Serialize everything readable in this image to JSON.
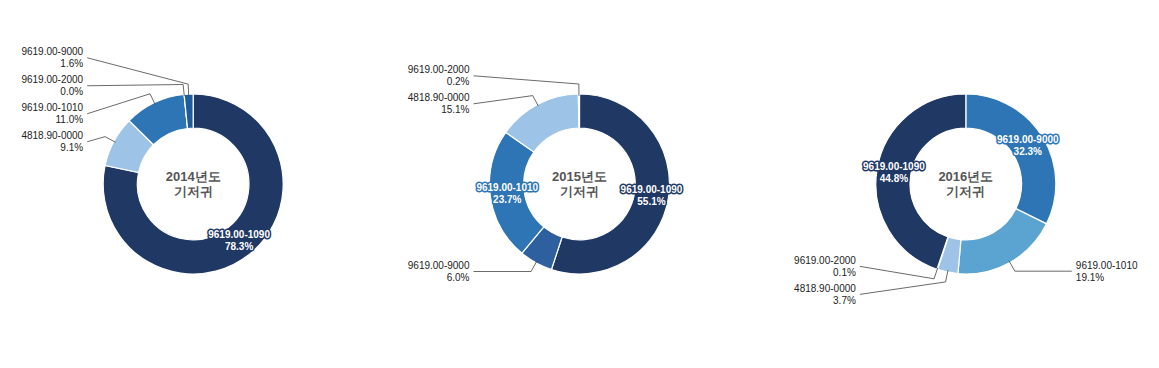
{
  "chart_data": [
    {
      "type": "donut",
      "title": "2014년도\n기저귀",
      "categories": [
        "9619.00-1090",
        "4818.90-0000",
        "9619.00-1010",
        "9619.00-2000",
        "9619.00-9000"
      ],
      "values": [
        78.3,
        9.1,
        11.0,
        0.0,
        1.6
      ],
      "value_labels": [
        "78.3%",
        "9.1%",
        "11.0%",
        "0.0%",
        "1.6%"
      ],
      "colors": [
        "#1f3864",
        "#9dc3e6",
        "#2e75b6",
        "#1f3864",
        "#1f5c99"
      ],
      "data_labels": true
    },
    {
      "type": "donut",
      "title": "2015년도\n기저귀",
      "categories": [
        "9619.00-1090",
        "9619.00-9000",
        "9619.00-1010",
        "4818.90-0000",
        "9619.00-2000"
      ],
      "values": [
        55.1,
        6.0,
        23.7,
        15.1,
        0.2
      ],
      "value_labels": [
        "55.1%",
        "6.0%",
        "23.7%",
        "15.1%",
        "0.2%"
      ],
      "colors": [
        "#1f3864",
        "#2e5f9e",
        "#2e75b6",
        "#9dc3e6",
        "#1a3a5c"
      ],
      "data_labels": true
    },
    {
      "type": "donut",
      "title": "2016년도\n기저귀",
      "categories": [
        "9619.00-9000",
        "9619.00-1010",
        "4818.90-0000",
        "9619.00-2000",
        "9619.00-1090"
      ],
      "values": [
        32.3,
        19.1,
        3.7,
        0.1,
        44.8
      ],
      "value_labels": [
        "32.3%",
        "19.1%",
        "3.7%",
        "0.1%",
        "44.8%"
      ],
      "colors": [
        "#2e75b6",
        "#5ba3d0",
        "#9dc3e6",
        "#c5ddf0",
        "#1f3864"
      ],
      "data_labels": true
    }
  ]
}
